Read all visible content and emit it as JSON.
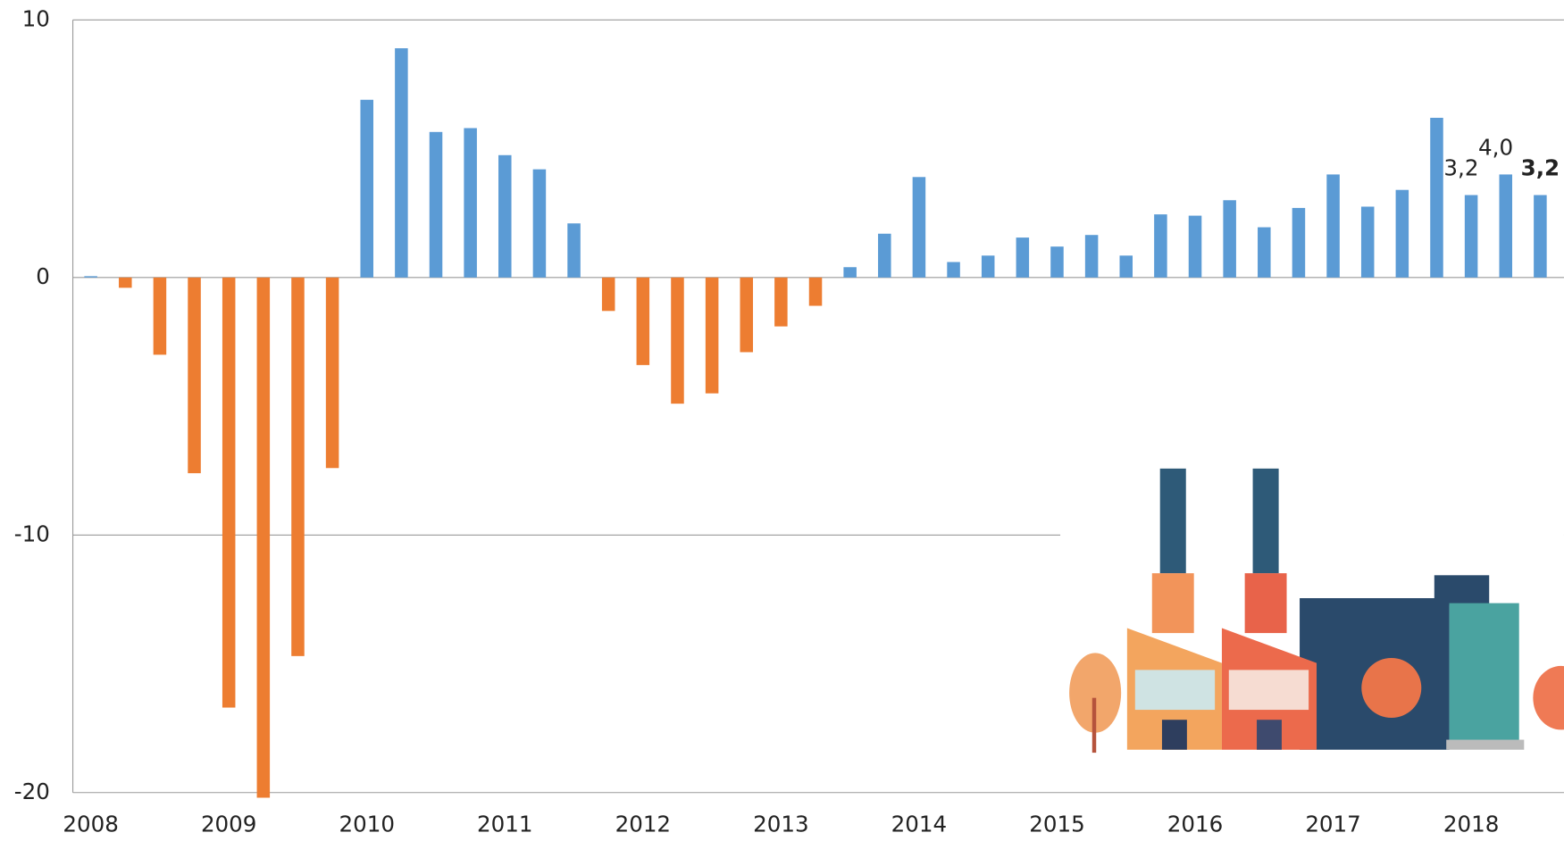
{
  "chart_data": {
    "type": "bar",
    "categories": [
      "2008",
      null,
      null,
      null,
      "2009",
      null,
      null,
      null,
      "2010",
      null,
      null,
      null,
      "2011",
      null,
      null,
      null,
      "2012",
      null,
      null,
      null,
      "2013",
      null,
      null,
      null,
      "2014",
      null,
      null,
      null,
      "2015",
      null,
      null,
      null,
      "2016",
      null,
      null,
      null,
      "2017",
      null,
      null,
      null,
      "2018",
      null,
      null
    ],
    "values": [
      0.05,
      -0.4,
      -3.0,
      -7.6,
      -16.7,
      -20.2,
      -14.7,
      -7.4,
      6.9,
      8.9,
      5.65,
      5.8,
      4.75,
      4.2,
      2.1,
      -1.3,
      -3.4,
      -4.9,
      -4.5,
      -2.9,
      -1.9,
      -1.1,
      0.4,
      1.7,
      3.9,
      0.6,
      0.85,
      1.55,
      1.2,
      1.65,
      0.85,
      2.45,
      2.4,
      3.0,
      1.95,
      2.7,
      4.0,
      2.75,
      3.4,
      6.2,
      3.2,
      4.0,
      3.2
    ],
    "value_labels": [
      null,
      null,
      null,
      null,
      null,
      null,
      null,
      null,
      null,
      null,
      null,
      null,
      null,
      null,
      null,
      null,
      null,
      null,
      null,
      null,
      null,
      null,
      null,
      null,
      null,
      null,
      null,
      null,
      null,
      null,
      null,
      null,
      null,
      null,
      null,
      null,
      null,
      null,
      null,
      null,
      "3,2",
      "4,0",
      "3,2"
    ],
    "positive_color": "#5b9bd5",
    "negative_color": "#ed7d31",
    "ylim": [
      -20,
      10
    ],
    "yticks": [
      10,
      0,
      -10,
      -20
    ],
    "grid": true
  }
}
